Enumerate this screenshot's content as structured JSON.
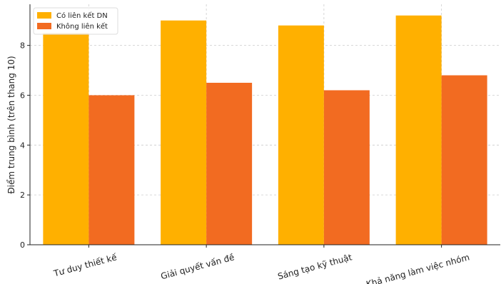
{
  "chart_data": {
    "type": "bar",
    "categories": [
      "Tư duy thiết kế",
      "Giải quyết vấn đề",
      "Sáng tạo kỹ thuật",
      "Khả năng làm việc nhóm"
    ],
    "series": [
      {
        "name": "Có liên kết DN",
        "values": [
          8.5,
          9.0,
          8.8,
          9.2
        ],
        "color": "#FFB000"
      },
      {
        "name": "Không liên kết",
        "values": [
          6.0,
          6.5,
          6.2,
          6.8
        ],
        "color": "#F26B21"
      }
    ],
    "title": "",
    "xlabel": "",
    "ylabel": "Điểm trung bình (trên thang 10)",
    "ylim": [
      0,
      9.65
    ],
    "yticks": [
      0,
      2,
      4,
      6,
      8
    ],
    "grid": true,
    "legend_position": "top-left"
  }
}
